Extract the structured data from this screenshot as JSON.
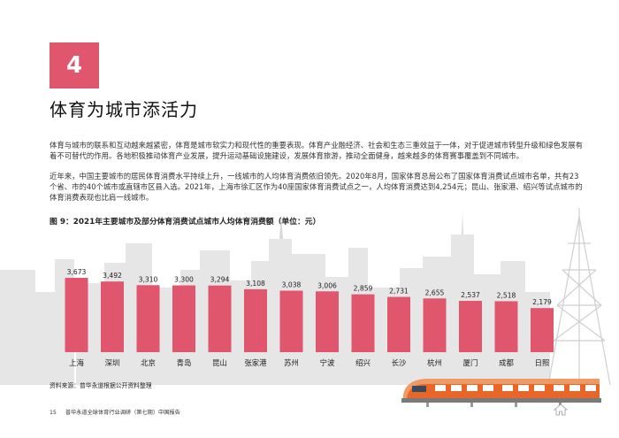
{
  "section_number": "4",
  "page_title": "体育为城市添活力",
  "paragraphs": [
    "体育与城市的联系和互动越来越紧密，体育是城市软实力和现代性的重要表现。体育产业融经济、社会和生态三重效益于一体，对于促进城市转型升级和绿色发展有着不可替代的作用。各地积极推动体育产业发展，提升运动基础设施建设，发展体育旅游，推动全面健身，越来越多的体育赛事覆盖到不同城市。",
    "近年来，中国主要城市的居民体育消费水平持续上升，一线城市的人均体育消费依旧领先。2020年8月，国家体育总局公布了国家体育消费试点城市名单，共有23个省、市的40个城市或直辖市区县入选。2021年，上海市徐汇区作为40座国家体育消费试点之一，人均体育消费达到4,254元；昆山、张家港、绍兴等试点城市的体育消费表现也比肩一线城市。"
  ],
  "chart_data": {
    "type": "bar",
    "title": "图 9：2021年主要城市及部分体育消费试点城市人均体育消费额（单位：元）",
    "categories": [
      "上海",
      "深圳",
      "北京",
      "青岛",
      "昆山",
      "张家港",
      "苏州",
      "宁波",
      "绍兴",
      "长沙",
      "杭州",
      "厦门",
      "成都",
      "日照"
    ],
    "values": [
      3673,
      3492,
      3310,
      3300,
      3294,
      3108,
      3038,
      3006,
      2859,
      2731,
      2655,
      2537,
      2518,
      2179
    ],
    "value_labels": [
      "3,673",
      "3,492",
      "3,310",
      "3,300",
      "3,294",
      "3,108",
      "3,038",
      "3,006",
      "2,859",
      "2,731",
      "2,655",
      "2,537",
      "2,518",
      "2,179"
    ],
    "xlabel": "",
    "ylabel": "",
    "ylim": [
      0,
      3673
    ],
    "grid": false,
    "bar_color": "#e0566d"
  },
  "source_note": "资料来源：普华永道根据公开资料整理",
  "footer": {
    "page_number": "15",
    "report_name": "普华永道全球体育行业调研（第七期）中国报告"
  },
  "colors": {
    "accent": "#e0566d",
    "skyline": "#e4e4e4",
    "train_orange": "#e8662a"
  },
  "icons": {
    "home": "home-icon"
  }
}
